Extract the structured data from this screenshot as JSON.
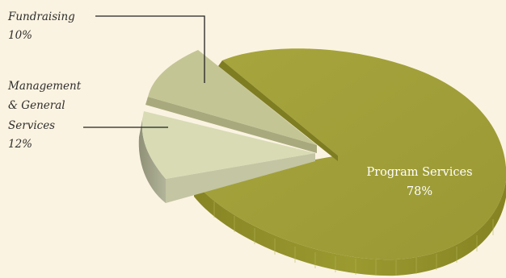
{
  "chart_data": {
    "type": "pie",
    "title": "",
    "slices": [
      {
        "name": "Program Services",
        "value_label": "78%",
        "value": 78,
        "color": "#a09e38"
      },
      {
        "name_lines": [
          "Management",
          "& General",
          "Services"
        ],
        "value_label": "12%",
        "value": 12,
        "color": "#d8dbb4"
      },
      {
        "name": "Fundraising",
        "value_label": "10%",
        "value": 10,
        "color": "#c3c595"
      }
    ]
  }
}
